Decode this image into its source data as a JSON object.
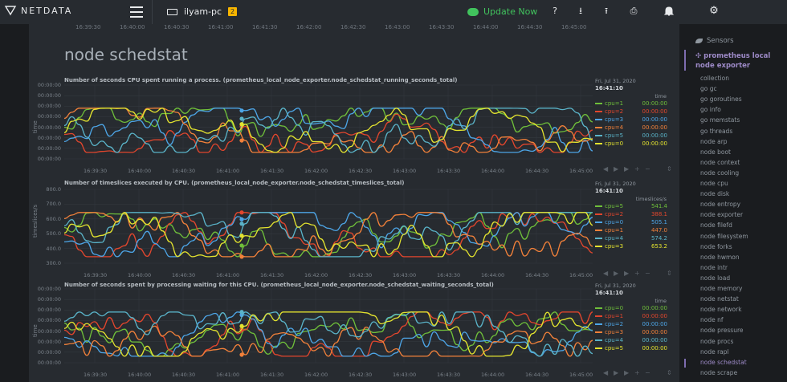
{
  "topbar": {
    "logo_text": "NETDATA",
    "host_name": "ilyam-pc",
    "host_badge": "2",
    "update_label": "Update Now",
    "icons": [
      "menu-icon",
      "server-icon",
      "help-icon",
      "download-icon",
      "upload-icon",
      "print-icon",
      "bell-icon",
      "gear-icon"
    ]
  },
  "page": {
    "title": "node schedstat",
    "top_ticks": [
      "16:39:30",
      "16:40:00",
      "16:40:30",
      "16:41:00",
      "16:41:30",
      "16:42:00",
      "16:42:30",
      "16:43:00",
      "16:43:30",
      "16:44:00",
      "16:44:30",
      "16:45:00"
    ]
  },
  "colors": {
    "cpu0": "#e3e32f",
    "cpu1": "#6fbf3a",
    "cpu2": "#e2462d",
    "cpu3": "#4da5e6",
    "cpu4": "#f2813a",
    "cpu5": "#5ab3c8",
    "accent": "#9d8ac7",
    "update": "#41c35d"
  },
  "charts": [
    {
      "title": "Number of seconds CPU spent running a process. (prometheus_local_node_exporter.node_schedstat_running_seconds_total)",
      "yaxis_name": "time",
      "yticks": [
        "00:00:00",
        "00:00:00",
        "00:00:00",
        "00:00:00",
        "00:00:00",
        "00:00:00",
        "00:00:00",
        "00:00:00"
      ],
      "xticks": [
        "16:39:30",
        "16:40:00",
        "16:40:30",
        "16:41:00",
        "16:41:30",
        "16:42:00",
        "16:42:30",
        "16:43:00",
        "16:43:30",
        "16:44:00",
        "16:44:30",
        "16:45:00"
      ],
      "legend_date": "Fri, Jul 31, 2020",
      "legend_time": "16:41:10",
      "units": "time",
      "legend": [
        {
          "name": "cpu=1",
          "value": "00:00:00",
          "color": "#6fbf3a"
        },
        {
          "name": "cpu=2",
          "value": "00:00:00",
          "color": "#e2462d"
        },
        {
          "name": "cpu=3",
          "value": "00:00:00",
          "color": "#4da5e6"
        },
        {
          "name": "cpu=4",
          "value": "00:00:00",
          "color": "#f2813a"
        },
        {
          "name": "cpu=5",
          "value": "00:00:00",
          "color": "#5ab3c8"
        },
        {
          "name": "cpu=0",
          "value": "00:00:00",
          "color": "#e3e32f"
        }
      ]
    },
    {
      "title": "Number of timeslices executed by CPU. (prometheus_local_node_exporter.node_schedstat_timeslices_total)",
      "yaxis_name": "timeslices/s",
      "yticks": [
        "800.0",
        "700.0",
        "600.0",
        "500.0",
        "400.0",
        "300.0"
      ],
      "xticks": [
        "16:39:30",
        "16:40:00",
        "16:40:30",
        "16:41:00",
        "16:41:30",
        "16:42:00",
        "16:42:30",
        "16:43:00",
        "16:43:30",
        "16:44:00",
        "16:44:30",
        "16:45:00"
      ],
      "legend_date": "Fri, Jul 31, 2020",
      "legend_time": "16:41:10",
      "units": "timeslices/s",
      "legend": [
        {
          "name": "cpu=5",
          "value": "541.4",
          "color": "#6fbf3a"
        },
        {
          "name": "cpu=2",
          "value": "388.1",
          "color": "#e2462d"
        },
        {
          "name": "cpu=0",
          "value": "505.1",
          "color": "#4da5e6"
        },
        {
          "name": "cpu=1",
          "value": "447.0",
          "color": "#f2813a"
        },
        {
          "name": "cpu=4",
          "value": "574.2",
          "color": "#5ab3c8"
        },
        {
          "name": "cpu=3",
          "value": "653.2",
          "color": "#e3e32f"
        }
      ]
    },
    {
      "title": "Number of seconds spent by processing waiting for this CPU. (prometheus_local_node_exporter.node_schedstat_waiting_seconds_total)",
      "yaxis_name": "time",
      "yticks": [
        "00:00:00",
        "00:00:00",
        "00:00:00",
        "00:00:00",
        "00:00:00",
        "00:00:00",
        "00:00:00",
        "00:00:00"
      ],
      "xticks": [
        "16:39:30",
        "16:40:00",
        "16:40:30",
        "16:41:00",
        "16:41:30",
        "16:42:00",
        "16:42:30",
        "16:43:00",
        "16:43:30",
        "16:44:00",
        "16:44:30",
        "16:45:00"
      ],
      "legend_date": "Fri, Jul 31, 2020",
      "legend_time": "16:41:10",
      "units": "time",
      "legend": [
        {
          "name": "cpu=0",
          "value": "00:00:00",
          "color": "#6fbf3a"
        },
        {
          "name": "cpu=1",
          "value": "00:00:00",
          "color": "#e2462d"
        },
        {
          "name": "cpu=2",
          "value": "00:00:00",
          "color": "#4da5e6"
        },
        {
          "name": "cpu=3",
          "value": "00:00:00",
          "color": "#f2813a"
        },
        {
          "name": "cpu=4",
          "value": "00:00:00",
          "color": "#5ab3c8"
        },
        {
          "name": "cpu=5",
          "value": "00:00:00",
          "color": "#e3e32f"
        }
      ]
    }
  ],
  "sidebar": {
    "section": "Sensors",
    "active_group": "prometheus local node exporter",
    "items": [
      "collection",
      "go gc",
      "go goroutines",
      "go info",
      "go memstats",
      "go threads",
      "node arp",
      "node boot",
      "node context",
      "node cooling",
      "node cpu",
      "node disk",
      "node entropy",
      "node exporter",
      "node filefd",
      "node filesystem",
      "node forks",
      "node hwmon",
      "node intr",
      "node load",
      "node memory",
      "node netstat",
      "node network",
      "node nf",
      "node pressure",
      "node procs",
      "node rapl",
      "node schedstat",
      "node scrape"
    ],
    "selected": "node schedstat"
  }
}
